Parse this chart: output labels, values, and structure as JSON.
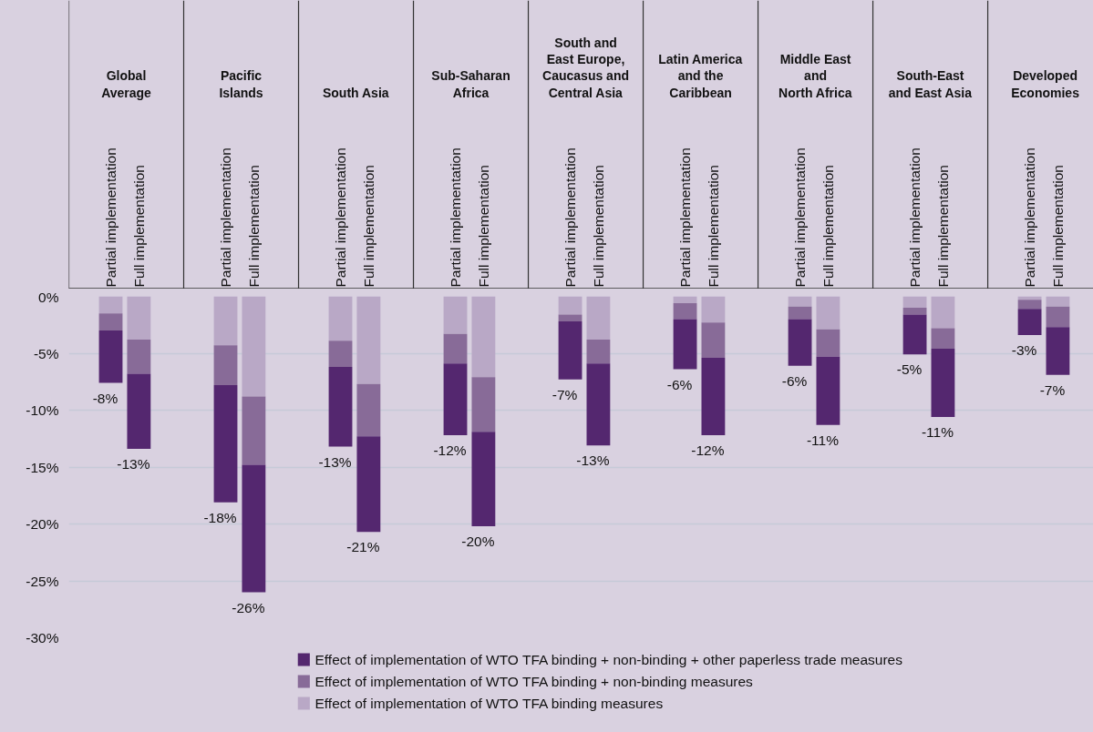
{
  "chart_data": {
    "type": "bar",
    "stacked": true,
    "categories": [
      "Partial implementation",
      "Full implementation",
      "Partial implementation",
      "Full implementation",
      "Partial implementation",
      "Full implementation",
      "Partial implementation",
      "Full implementation",
      "Partial implementation",
      "Full implementation",
      "Partial implementation",
      "Full implementation",
      "Partial implementation",
      "Full implementation",
      "Partial implementation",
      "Full implementation",
      "Partial implementation",
      "Full implementation"
    ],
    "annotations": [
      "Global\nAverage",
      "Pacific\nIslands",
      "South Asia",
      "Sub-Saharan\nAfrica",
      "South and\nEast Europe,\nCaucasus and\nCentral Asia",
      "Latin America\nand the\nCaribbean",
      "Middle East\nand\nNorth Africa",
      "South-East\nand East Asia",
      "Developed\nEconomies"
    ],
    "series": [
      {
        "name": "Effect of implementation of WTO TFA binding measures",
        "color": "#b9a8c6",
        "values": [
          -1.5,
          -3.8,
          -4.3,
          -8.8,
          -3.9,
          -7.7,
          -3.3,
          -7.1,
          -1.6,
          -3.8,
          -0.6,
          -2.3,
          -0.9,
          -2.9,
          -1.0,
          -2.8,
          -0.3,
          -0.9
        ]
      },
      {
        "name": "Effect of implementation of WTO TFA binding + non-binding measures",
        "color": "#886b98",
        "values": [
          -1.5,
          -3.0,
          -3.5,
          -6.0,
          -2.3,
          -4.6,
          -2.6,
          -4.8,
          -0.6,
          -2.1,
          -1.4,
          -3.1,
          -1.1,
          -2.4,
          -0.6,
          -1.8,
          -0.8,
          -1.8
        ]
      },
      {
        "name": "Effect of implementation of WTO TFA binding + non-binding + other paperless trade measures",
        "color": "#54276f",
        "values": [
          -4.6,
          -6.6,
          -10.3,
          -11.2,
          -7.0,
          -8.4,
          -6.3,
          -8.3,
          -5.1,
          -7.2,
          -4.4,
          -6.8,
          -4.1,
          -6.0,
          -3.5,
          -6.0,
          -2.3,
          -4.2
        ]
      }
    ],
    "totals": [
      "-8%",
      "-13%",
      "-18%",
      "-26%",
      "-13%",
      "-21%",
      "-12%",
      "-20%",
      "-7%",
      "-13%",
      "-6%",
      "-12%",
      "-6%",
      "-11%",
      "-5%",
      "-11%",
      "-3%",
      "-7%"
    ],
    "ylim": [
      -30,
      0
    ],
    "yticks": [
      {
        "value": 0,
        "label": "0%"
      },
      {
        "value": -5,
        "label": "-5%"
      },
      {
        "value": -10,
        "label": "-10%"
      },
      {
        "value": -15,
        "label": "-15%"
      },
      {
        "value": -20,
        "label": "-20%"
      },
      {
        "value": -25,
        "label": "-25%"
      },
      {
        "value": -30,
        "label": "-30%"
      }
    ],
    "grid": "y",
    "legend": "bottom"
  }
}
